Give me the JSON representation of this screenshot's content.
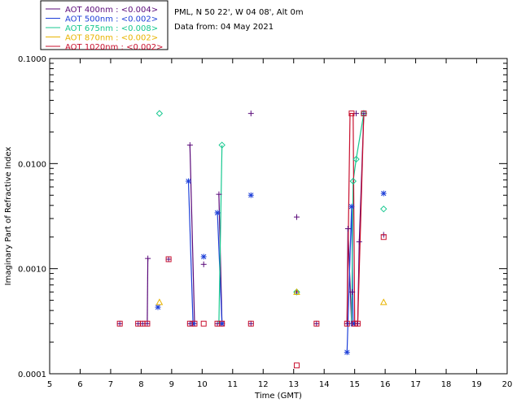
{
  "header": {
    "site": "PML, N 50 22', W 04 08', Alt 0m",
    "date": "Data from: 04 May 2021"
  },
  "chart_data": {
    "type": "scatter",
    "title": "PML, N 50 22', W 04 08', Alt 0m",
    "xlabel": "Time (GMT)",
    "ylabel": "Imaginary Part of Refractive Index",
    "xlim": [
      5,
      20
    ],
    "ylim": [
      0.0001,
      0.1
    ],
    "yscale": "log",
    "x_ticks": [
      "5",
      "6",
      "7",
      "8",
      "9",
      "10",
      "11",
      "12",
      "13",
      "14",
      "15",
      "16",
      "17",
      "18",
      "19",
      "20"
    ],
    "y_ticks": [
      "0.0001",
      "0.0010",
      "0.0100",
      "0.1000"
    ],
    "legend_position": "top-left (outside plot)",
    "series": [
      {
        "name": "AOT 400nm : <0.004>",
        "color": "#5a0a7a",
        "marker": "plus",
        "points": [
          [
            7.3,
            0.0003
          ],
          [
            7.9,
            0.0003
          ],
          [
            8.05,
            0.0003
          ],
          [
            8.2,
            0.0003
          ],
          [
            8.22,
            0.00125
          ],
          [
            8.9,
            0.00123
          ],
          [
            9.6,
            0.0003
          ],
          [
            9.6,
            0.015
          ],
          [
            9.75,
            0.0003
          ],
          [
            10.05,
            0.0011
          ],
          [
            10.5,
            0.0003
          ],
          [
            10.55,
            0.0051
          ],
          [
            10.65,
            0.0003
          ],
          [
            11.6,
            0.0003
          ],
          [
            11.6,
            0.03
          ],
          [
            13.1,
            0.0031
          ],
          [
            13.1,
            0.0006
          ],
          [
            13.75,
            0.0003
          ],
          [
            14.75,
            0.0003
          ],
          [
            14.78,
            0.0024
          ],
          [
            14.9,
            0.0003
          ],
          [
            14.92,
            0.0006
          ],
          [
            15.0,
            0.0003
          ],
          [
            15.05,
            0.03
          ],
          [
            15.1,
            0.0003
          ],
          [
            15.15,
            0.0018
          ],
          [
            15.3,
            0.03
          ],
          [
            15.95,
            0.0021
          ]
        ],
        "lines": [
          [
            [
              8.2,
              0.0003
            ],
            [
              8.22,
              0.00125
            ]
          ],
          [
            [
              9.6,
              0.015
            ],
            [
              9.75,
              0.0003
            ]
          ],
          [
            [
              10.55,
              0.0051
            ],
            [
              10.65,
              0.0003
            ]
          ],
          [
            [
              14.75,
              0.0003
            ],
            [
              14.78,
              0.0024
            ],
            [
              14.9,
              0.0003
            ]
          ],
          [
            [
              15.1,
              0.0003
            ],
            [
              15.15,
              0.0018
            ],
            [
              15.3,
              0.03
            ]
          ]
        ]
      },
      {
        "name": "AOT 500nm : <0.002>",
        "color": "#1d3fd8",
        "marker": "asterisk",
        "points": [
          [
            8.55,
            0.00043
          ],
          [
            9.55,
            0.0068
          ],
          [
            9.7,
            0.0003
          ],
          [
            10.05,
            0.0013
          ],
          [
            10.5,
            0.0034
          ],
          [
            10.65,
            0.0003
          ],
          [
            11.6,
            0.005
          ],
          [
            14.75,
            0.00016
          ],
          [
            14.9,
            0.0039
          ],
          [
            14.95,
            0.0003
          ],
          [
            15.95,
            0.0052
          ]
        ],
        "lines": [
          [
            [
              9.55,
              0.0068
            ],
            [
              9.7,
              0.0003
            ]
          ],
          [
            [
              10.5,
              0.0034
            ],
            [
              10.65,
              0.0003
            ]
          ],
          [
            [
              14.75,
              0.00016
            ],
            [
              14.9,
              0.0039
            ],
            [
              14.95,
              0.0003
            ]
          ]
        ]
      },
      {
        "name": "AOT 675nm : <0.008>",
        "color": "#18c890",
        "marker": "diamond",
        "points": [
          [
            8.6,
            0.03
          ],
          [
            10.65,
            0.015
          ],
          [
            13.1,
            0.0006
          ],
          [
            14.95,
            0.0068
          ],
          [
            15.05,
            0.011
          ],
          [
            15.3,
            0.03
          ],
          [
            15.95,
            0.0037
          ]
        ],
        "lines": [
          [
            [
              10.55,
              0.0003
            ],
            [
              10.65,
              0.015
            ]
          ],
          [
            [
              14.9,
              0.0003
            ],
            [
              14.95,
              0.0068
            ],
            [
              15.05,
              0.011
            ],
            [
              15.3,
              0.03
            ]
          ]
        ]
      },
      {
        "name": "AOT 870nm : <0.002>",
        "color": "#e8b400",
        "marker": "triangle",
        "points": [
          [
            8.6,
            0.00048
          ],
          [
            13.1,
            0.0006
          ],
          [
            15.95,
            0.00048
          ]
        ],
        "lines": []
      },
      {
        "name": "AOT 1020nm : <0.002>",
        "color": "#c8102e",
        "marker": "square",
        "points": [
          [
            7.3,
            0.0003
          ],
          [
            7.9,
            0.0003
          ],
          [
            8.05,
            0.0003
          ],
          [
            8.2,
            0.0003
          ],
          [
            8.9,
            0.00123
          ],
          [
            9.6,
            0.0003
          ],
          [
            9.75,
            0.0003
          ],
          [
            10.05,
            0.0003
          ],
          [
            10.5,
            0.0003
          ],
          [
            10.65,
            0.0003
          ],
          [
            11.6,
            0.0003
          ],
          [
            13.1,
            0.00012
          ],
          [
            13.75,
            0.0003
          ],
          [
            14.75,
            0.0003
          ],
          [
            14.9,
            0.03
          ],
          [
            15.0,
            0.0003
          ],
          [
            15.1,
            0.0003
          ],
          [
            15.3,
            0.03
          ],
          [
            15.95,
            0.002
          ]
        ],
        "lines": [
          [
            [
              14.75,
              0.0003
            ],
            [
              14.85,
              0.03
            ],
            [
              14.95,
              0.03
            ],
            [
              15.0,
              0.0003
            ]
          ],
          [
            [
              15.1,
              0.0003
            ],
            [
              15.3,
              0.03
            ]
          ]
        ]
      }
    ]
  }
}
